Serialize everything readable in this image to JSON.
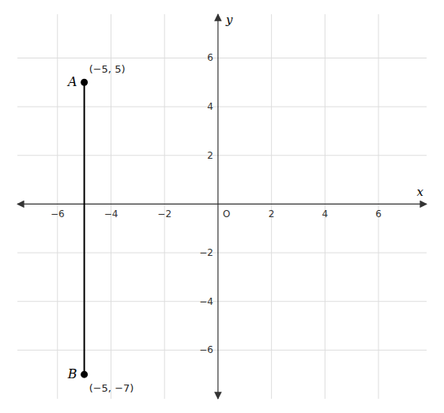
{
  "chart_data": {
    "type": "line",
    "x": [
      -5,
      -5
    ],
    "series": [
      {
        "values": [
          5,
          -7
        ],
        "color": "#000000",
        "marker": "circle",
        "point_labels": [
          "A",
          "B"
        ],
        "value_labels": [
          "(−5, 5)",
          "(−5, −7)"
        ]
      }
    ],
    "data_labels": true,
    "x_label": "x",
    "y_label": "y",
    "annotations": [
      {
        "text": "O",
        "x": 0,
        "y": 0
      }
    ],
    "xlim": [
      -7.5,
      7.8
    ],
    "ylim": [
      -8.0,
      7.8
    ],
    "xticks": [
      -6,
      -4,
      -2,
      2,
      4,
      6
    ],
    "yticks": [
      -6,
      -4,
      -2,
      2,
      4,
      6
    ],
    "grid": true
  }
}
